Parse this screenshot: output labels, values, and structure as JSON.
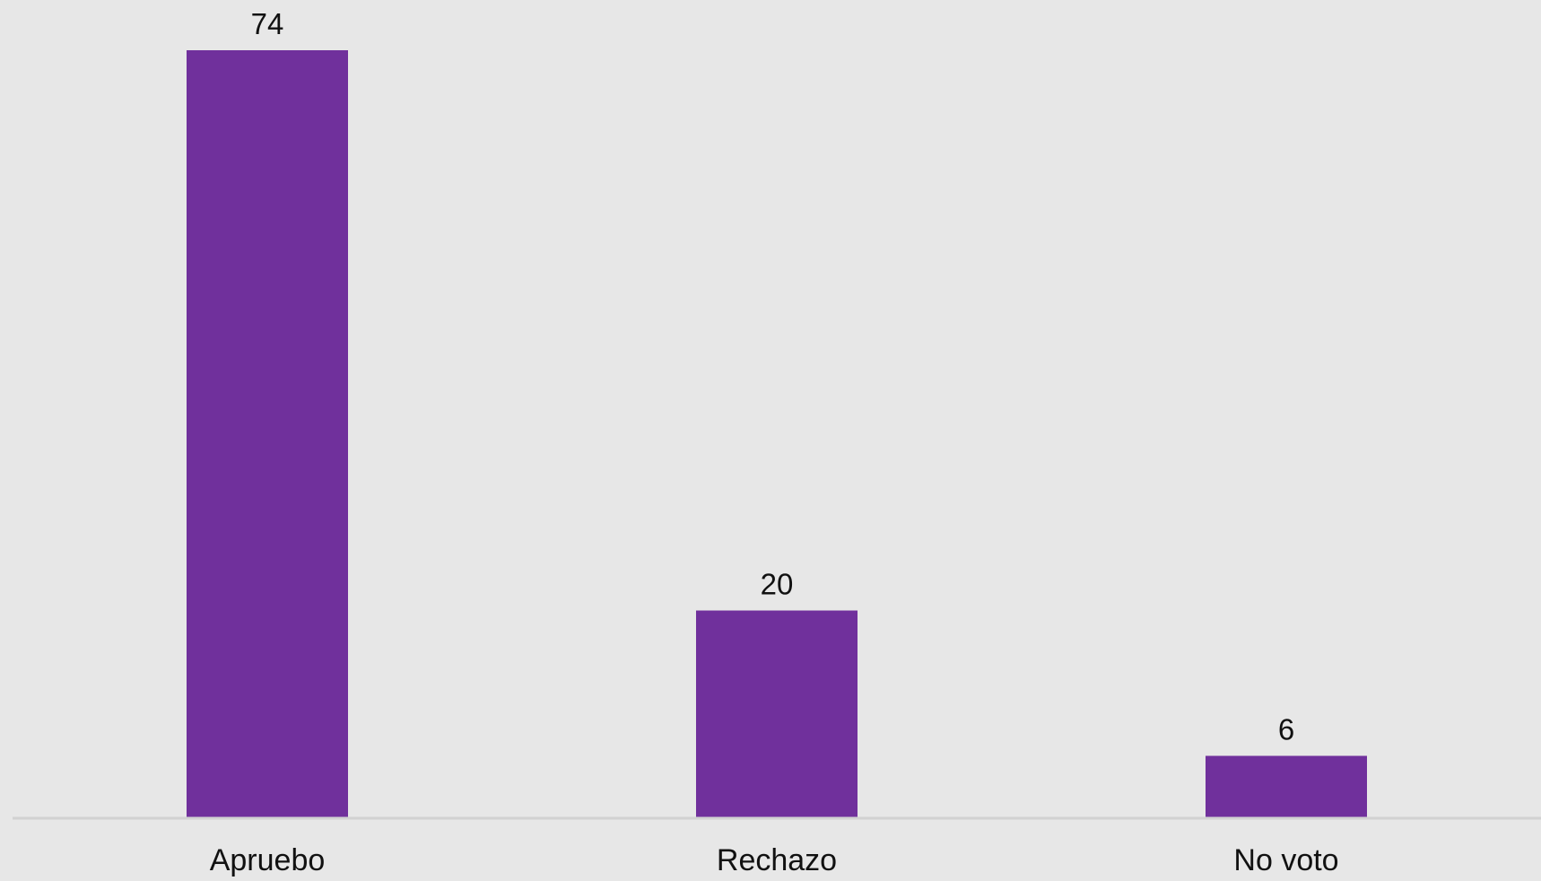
{
  "chart_data": {
    "type": "bar",
    "categories": [
      "Apruebo",
      "Rechazo",
      "No voto"
    ],
    "values": [
      74,
      20,
      6
    ],
    "title": "",
    "xlabel": "",
    "ylabel": "",
    "ylim": [
      0,
      74
    ],
    "grid": false,
    "legend": "none",
    "data_labels": true,
    "colors": {
      "bar": "#70309c",
      "background": "#e7e7e7",
      "axis": "#d2d2d2",
      "text": "#111111"
    }
  }
}
